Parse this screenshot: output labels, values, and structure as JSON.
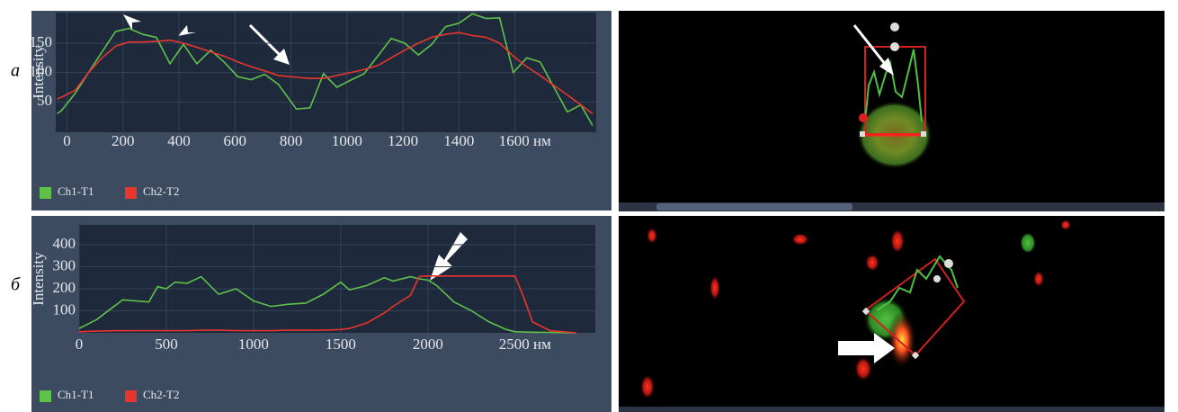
{
  "chart_data": [
    {
      "type": "line",
      "panel_label": "а",
      "y_label": "Intensity",
      "x": [
        -35,
        -20,
        30,
        77,
        125,
        174,
        222,
        271,
        319,
        368,
        416,
        464,
        513,
        561,
        610,
        658,
        706,
        755,
        819,
        868,
        916,
        964,
        1013,
        1061,
        1110,
        1158,
        1206,
        1255,
        1303,
        1352,
        1400,
        1448,
        1497,
        1545,
        1594,
        1642,
        1690,
        1739,
        1787,
        1835,
        1877
      ],
      "series": [
        {
          "name": "Ch1-T1",
          "color": "#5ec24a",
          "values": [
            30,
            35,
            65,
            100,
            135,
            170,
            175,
            165,
            160,
            115,
            148,
            115,
            138,
            118,
            93,
            88,
            97,
            80,
            38,
            40,
            98,
            75,
            87,
            98,
            128,
            158,
            150,
            130,
            148,
            178,
            184,
            200,
            192,
            193,
            100,
            125,
            118,
            75,
            33,
            45,
            10
          ]
        },
        {
          "name": "Ch2-T2",
          "color": "#e8352e",
          "values": [
            55,
            58,
            70,
            100,
            125,
            145,
            152,
            152,
            153,
            155,
            150,
            143,
            135,
            128,
            118,
            110,
            103,
            95,
            92,
            90,
            90,
            95,
            100,
            105,
            112,
            125,
            138,
            150,
            160,
            165,
            168,
            163,
            160,
            150,
            128,
            110,
            95,
            78,
            62,
            45,
            30
          ]
        }
      ],
      "xlim": [
        -40,
        1890
      ],
      "ylim": [
        0,
        202
      ],
      "xticks": [
        0,
        200,
        400,
        600,
        800,
        1000,
        1200,
        1400,
        {
          "value": 1600,
          "label": "1600 нм"
        }
      ],
      "yticks": [
        50,
        100,
        150
      ],
      "grid": true
    },
    {
      "type": "line",
      "panel_label": "б",
      "y_label": "Intensity",
      "x": [
        0,
        100,
        250,
        400,
        450,
        500,
        550,
        620,
        700,
        800,
        900,
        1000,
        1100,
        1200,
        1300,
        1400,
        1500,
        1550,
        1650,
        1750,
        1800,
        1900,
        1950,
        2000,
        2050,
        2150,
        2250,
        2350,
        2450,
        2500,
        2550,
        2600,
        2700,
        2850
      ],
      "series": [
        {
          "name": "Ch1-T1",
          "color": "#5ec24a",
          "values": [
            20,
            60,
            150,
            140,
            210,
            200,
            230,
            225,
            255,
            175,
            200,
            145,
            120,
            130,
            135,
            175,
            230,
            195,
            215,
            250,
            235,
            255,
            245,
            240,
            215,
            140,
            100,
            50,
            15,
            5,
            4,
            3,
            2,
            0
          ]
        },
        {
          "name": "Ch2-T2",
          "color": "#e8352e",
          "values": [
            5,
            8,
            10,
            10,
            10,
            10,
            10,
            10,
            12,
            12,
            10,
            10,
            10,
            12,
            12,
            12,
            15,
            20,
            45,
            90,
            120,
            170,
            255,
            258,
            258,
            258,
            258,
            258,
            258,
            258,
            160,
            50,
            10,
            0
          ]
        }
      ],
      "xlim": [
        0,
        2960
      ],
      "ylim": [
        0,
        490
      ],
      "xticks": [
        0,
        500,
        1000,
        1500,
        2000,
        {
          "value": 2500,
          "label": "2500 нм"
        }
      ],
      "yticks": [
        100,
        200,
        300,
        400
      ],
      "grid": true
    }
  ]
}
